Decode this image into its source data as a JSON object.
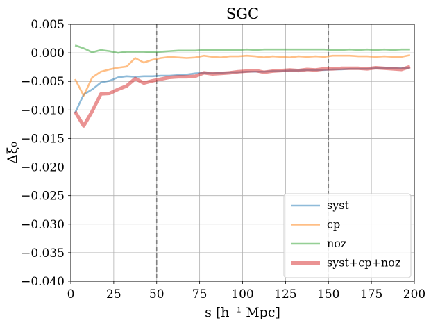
{
  "chart_data": {
    "type": "line",
    "title": "SGC",
    "xlabel": "s [h⁻¹ Mpc]",
    "ylabel": "Δξ₀",
    "xlim": [
      0,
      200
    ],
    "ylim": [
      -0.04,
      0.005
    ],
    "xticks": [
      0,
      25,
      50,
      75,
      100,
      125,
      150,
      175,
      200
    ],
    "xtick_labels": [
      "0",
      "25",
      "50",
      "75",
      "100",
      "125",
      "150",
      "175",
      "200"
    ],
    "yticks": [
      0.005,
      0.0,
      -0.005,
      -0.01,
      -0.015,
      -0.02,
      -0.025,
      -0.03,
      -0.035,
      -0.04
    ],
    "ytick_labels": [
      "0.005",
      "0.000",
      "−0.005",
      "−0.010",
      "−0.015",
      "−0.020",
      "−0.025",
      "−0.030",
      "−0.035",
      "−0.040"
    ],
    "grid": true,
    "legend_position": "bottom-right",
    "vlines": [
      50,
      150
    ],
    "x": [
      2.5,
      7.5,
      12.5,
      17.5,
      22.5,
      27.5,
      32.5,
      37.5,
      42.5,
      47.5,
      52.5,
      57.5,
      62.5,
      67.5,
      72.5,
      77.5,
      82.5,
      87.5,
      92.5,
      97.5,
      102.5,
      107.5,
      112.5,
      117.5,
      122.5,
      127.5,
      132.5,
      137.5,
      142.5,
      147.5,
      152.5,
      157.5,
      162.5,
      167.5,
      172.5,
      177.5,
      182.5,
      187.5,
      192.5,
      197.5
    ],
    "series": [
      {
        "name": "syst",
        "color": "#1f77b4",
        "values": [
          -0.0105,
          -0.0073,
          -0.0064,
          -0.0052,
          -0.0049,
          -0.0043,
          -0.0041,
          -0.0042,
          -0.0041,
          -0.0041,
          -0.004,
          -0.004,
          -0.0039,
          -0.0038,
          -0.0036,
          -0.0035,
          -0.0036,
          -0.0035,
          -0.0034,
          -0.0034,
          -0.0033,
          -0.0033,
          -0.0033,
          -0.0032,
          -0.0032,
          -0.0031,
          -0.0031,
          -0.003,
          -0.003,
          -0.003,
          -0.0029,
          -0.0029,
          -0.0028,
          -0.0028,
          -0.0028,
          -0.0027,
          -0.0027,
          -0.0027,
          -0.0027,
          -0.0026
        ]
      },
      {
        "name": "cp",
        "color": "#ff7f0e",
        "values": [
          -0.0046,
          -0.0075,
          -0.0043,
          -0.0033,
          -0.0029,
          -0.0026,
          -0.0024,
          -0.0009,
          -0.0017,
          -0.0012,
          -0.0009,
          -0.0007,
          -0.0008,
          -0.0009,
          -0.0008,
          -0.0005,
          -0.0007,
          -0.0008,
          -0.0006,
          -0.0006,
          -0.0005,
          -0.0006,
          -0.0008,
          -0.0006,
          -0.0007,
          -0.0008,
          -0.0006,
          -0.0007,
          -0.0006,
          -0.0007,
          -0.0005,
          -0.0005,
          -0.0005,
          -0.0006,
          -0.0006,
          -0.0007,
          -0.0006,
          -0.0007,
          -0.0007,
          -0.0004
        ]
      },
      {
        "name": "noz",
        "color": "#2ca02c",
        "values": [
          0.0013,
          0.0008,
          0.0001,
          0.0005,
          0.0003,
          0.0,
          0.0002,
          0.0002,
          0.0002,
          0.0001,
          0.0002,
          0.0003,
          0.0004,
          0.0004,
          0.0004,
          0.0005,
          0.0005,
          0.0005,
          0.0005,
          0.0005,
          0.0006,
          0.0005,
          0.0006,
          0.0006,
          0.0006,
          0.0006,
          0.0006,
          0.0006,
          0.0006,
          0.0006,
          0.0005,
          0.0005,
          0.0006,
          0.0005,
          0.0006,
          0.0005,
          0.0006,
          0.0005,
          0.0006,
          0.0006
        ]
      },
      {
        "name": "syst+cp+noz",
        "color": "#d62728",
        "values": [
          -0.0103,
          -0.0128,
          -0.0102,
          -0.0072,
          -0.0071,
          -0.0064,
          -0.0058,
          -0.0045,
          -0.0053,
          -0.0049,
          -0.0046,
          -0.0043,
          -0.0042,
          -0.0042,
          -0.0041,
          -0.0035,
          -0.0037,
          -0.0036,
          -0.0035,
          -0.0033,
          -0.0032,
          -0.0031,
          -0.0034,
          -0.0032,
          -0.0031,
          -0.003,
          -0.0031,
          -0.0029,
          -0.003,
          -0.0028,
          -0.0028,
          -0.0027,
          -0.0027,
          -0.0027,
          -0.0028,
          -0.0026,
          -0.0027,
          -0.0028,
          -0.0029,
          -0.0024
        ]
      }
    ]
  }
}
